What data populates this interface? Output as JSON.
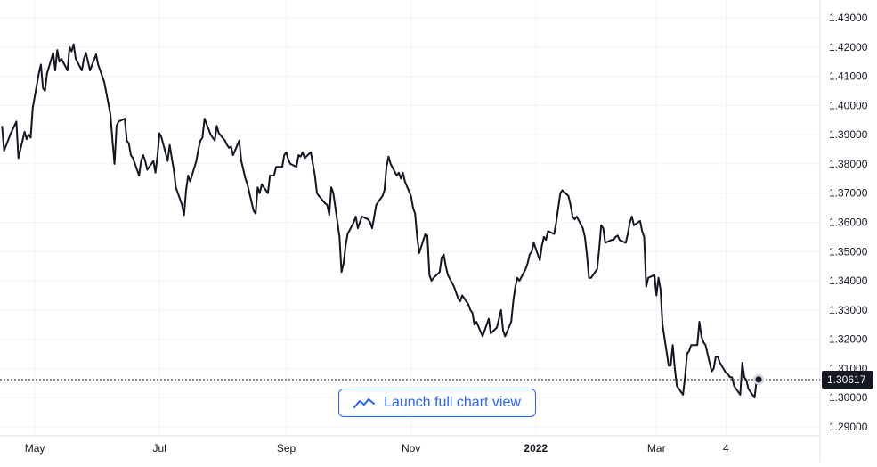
{
  "colors": {
    "line": "#131722",
    "grid": "#e6e6e6",
    "text": "#131722",
    "accent": "#2962ff",
    "last_label_bg": "#131722"
  },
  "launch_button": {
    "label": "Launch full chart view",
    "icon": "chart-line-icon"
  },
  "chart_data": {
    "type": "line",
    "title": "",
    "xlabel": "",
    "ylabel": "",
    "ylim": [
      1.29,
      1.43
    ],
    "y_ticks": [
      "1.43000",
      "1.42000",
      "1.41000",
      "1.40000",
      "1.39000",
      "1.38000",
      "1.37000",
      "1.36000",
      "1.35000",
      "1.34000",
      "1.33000",
      "1.32000",
      "1.31000",
      "1.30000",
      "1.29000"
    ],
    "x_ticks": [
      {
        "label": "May",
        "date": "2021-05-01",
        "bold": false
      },
      {
        "label": "Jul",
        "date": "2021-07-01",
        "bold": false
      },
      {
        "label": "Sep",
        "date": "2021-09-01",
        "bold": false
      },
      {
        "label": "Nov",
        "date": "2021-11-01",
        "bold": false
      },
      {
        "label": "2022",
        "date": "2022-01-01",
        "bold": true
      },
      {
        "label": "Mar",
        "date": "2022-03-01",
        "bold": false
      },
      {
        "label": "4",
        "date": "2022-04-04",
        "bold": false
      }
    ],
    "xlim": [
      "2021-04-14",
      "2022-05-20"
    ],
    "last_value": 1.30617,
    "last_value_label": "1.30617",
    "series": [
      {
        "values": [
          [
            "2021-04-15",
            1.393
          ],
          [
            "2021-04-16",
            1.3845
          ],
          [
            "2021-04-19",
            1.39
          ],
          [
            "2021-04-20",
            1.3915
          ],
          [
            "2021-04-21",
            1.393
          ],
          [
            "2021-04-22",
            1.3945
          ],
          [
            "2021-04-23",
            1.382
          ],
          [
            "2021-04-26",
            1.391
          ],
          [
            "2021-04-27",
            1.3885
          ],
          [
            "2021-04-28",
            1.39
          ],
          [
            "2021-04-29",
            1.389
          ],
          [
            "2021-04-30",
            1.399
          ],
          [
            "2021-05-03",
            1.411
          ],
          [
            "2021-05-04",
            1.414
          ],
          [
            "2021-05-05",
            1.406
          ],
          [
            "2021-05-06",
            1.405
          ],
          [
            "2021-05-07",
            1.411
          ],
          [
            "2021-05-10",
            1.418
          ],
          [
            "2021-05-11",
            1.412
          ],
          [
            "2021-05-12",
            1.419
          ],
          [
            "2021-05-13",
            1.415
          ],
          [
            "2021-05-14",
            1.416
          ],
          [
            "2021-05-17",
            1.412
          ],
          [
            "2021-05-18",
            1.42
          ],
          [
            "2021-05-19",
            1.4185
          ],
          [
            "2021-05-20",
            1.421
          ],
          [
            "2021-05-21",
            1.416
          ],
          [
            "2021-05-24",
            1.412
          ],
          [
            "2021-05-25",
            1.416
          ],
          [
            "2021-05-26",
            1.418
          ],
          [
            "2021-05-27",
            1.415
          ],
          [
            "2021-05-28",
            1.412
          ],
          [
            "2021-05-31",
            1.4175
          ],
          [
            "2021-06-01",
            1.414
          ],
          [
            "2021-06-02",
            1.412
          ],
          [
            "2021-06-03",
            1.41
          ],
          [
            "2021-06-04",
            1.408
          ],
          [
            "2021-06-07",
            1.397
          ],
          [
            "2021-06-08",
            1.388
          ],
          [
            "2021-06-09",
            1.38
          ],
          [
            "2021-06-10",
            1.393
          ],
          [
            "2021-06-11",
            1.3945
          ],
          [
            "2021-06-14",
            1.3955
          ],
          [
            "2021-06-15",
            1.388
          ],
          [
            "2021-06-16",
            1.387
          ],
          [
            "2021-06-17",
            1.383
          ],
          [
            "2021-06-18",
            1.382
          ],
          [
            "2021-06-21",
            1.376
          ],
          [
            "2021-06-22",
            1.381
          ],
          [
            "2021-06-23",
            1.383
          ],
          [
            "2021-06-24",
            1.381
          ],
          [
            "2021-06-25",
            1.378
          ],
          [
            "2021-06-28",
            1.381
          ],
          [
            "2021-06-29",
            1.377
          ],
          [
            "2021-06-30",
            1.383
          ],
          [
            "2021-07-01",
            1.3905
          ],
          [
            "2021-07-02",
            1.389
          ],
          [
            "2021-07-05",
            1.381
          ],
          [
            "2021-07-06",
            1.3865
          ],
          [
            "2021-07-07",
            1.382
          ],
          [
            "2021-07-08",
            1.378
          ],
          [
            "2021-07-09",
            1.372
          ],
          [
            "2021-07-12",
            1.366
          ],
          [
            "2021-07-13",
            1.3625
          ],
          [
            "2021-07-14",
            1.371
          ],
          [
            "2021-07-15",
            1.376
          ],
          [
            "2021-07-16",
            1.374
          ],
          [
            "2021-07-19",
            1.381
          ],
          [
            "2021-07-20",
            1.385
          ],
          [
            "2021-07-21",
            1.388
          ],
          [
            "2021-07-22",
            1.389
          ],
          [
            "2021-07-23",
            1.3955
          ],
          [
            "2021-07-26",
            1.39
          ],
          [
            "2021-07-27",
            1.389
          ],
          [
            "2021-07-28",
            1.388
          ],
          [
            "2021-07-29",
            1.393
          ],
          [
            "2021-07-30",
            1.3905
          ],
          [
            "2021-08-02",
            1.388
          ],
          [
            "2021-08-03",
            1.3865
          ],
          [
            "2021-08-04",
            1.3855
          ],
          [
            "2021-08-05",
            1.386
          ],
          [
            "2021-08-06",
            1.383
          ],
          [
            "2021-08-09",
            1.388
          ],
          [
            "2021-08-10",
            1.381
          ],
          [
            "2021-08-11",
            1.378
          ],
          [
            "2021-08-12",
            1.375
          ],
          [
            "2021-08-13",
            1.373
          ],
          [
            "2021-08-16",
            1.364
          ],
          [
            "2021-08-17",
            1.363
          ],
          [
            "2021-08-18",
            1.372
          ],
          [
            "2021-08-19",
            1.37
          ],
          [
            "2021-08-20",
            1.373
          ],
          [
            "2021-08-23",
            1.37
          ],
          [
            "2021-08-24",
            1.376
          ],
          [
            "2021-08-25",
            1.376
          ],
          [
            "2021-08-26",
            1.376
          ],
          [
            "2021-08-27",
            1.379
          ],
          [
            "2021-08-30",
            1.379
          ],
          [
            "2021-08-31",
            1.383
          ],
          [
            "2021-09-01",
            1.384
          ],
          [
            "2021-09-02",
            1.3815
          ],
          [
            "2021-09-03",
            1.38
          ],
          [
            "2021-09-06",
            1.379
          ],
          [
            "2021-09-07",
            1.383
          ],
          [
            "2021-09-08",
            1.3825
          ],
          [
            "2021-09-09",
            1.384
          ],
          [
            "2021-09-10",
            1.382
          ],
          [
            "2021-09-13",
            1.384
          ],
          [
            "2021-09-14",
            1.38
          ],
          [
            "2021-09-15",
            1.376
          ],
          [
            "2021-09-16",
            1.37
          ],
          [
            "2021-09-17",
            1.369
          ],
          [
            "2021-09-20",
            1.3665
          ],
          [
            "2021-09-21",
            1.366
          ],
          [
            "2021-09-22",
            1.3625
          ],
          [
            "2021-09-23",
            1.372
          ],
          [
            "2021-09-24",
            1.37
          ],
          [
            "2021-09-27",
            1.355
          ],
          [
            "2021-09-28",
            1.343
          ],
          [
            "2021-09-29",
            1.346
          ],
          [
            "2021-09-30",
            1.352
          ],
          [
            "2021-10-01",
            1.356
          ],
          [
            "2021-10-04",
            1.36
          ],
          [
            "2021-10-05",
            1.362
          ],
          [
            "2021-10-06",
            1.358
          ],
          [
            "2021-10-07",
            1.36
          ],
          [
            "2021-10-08",
            1.362
          ],
          [
            "2021-10-11",
            1.361
          ],
          [
            "2021-10-12",
            1.36
          ],
          [
            "2021-10-13",
            1.358
          ],
          [
            "2021-10-14",
            1.362
          ],
          [
            "2021-10-15",
            1.366
          ],
          [
            "2021-10-18",
            1.369
          ],
          [
            "2021-10-19",
            1.371
          ],
          [
            "2021-10-20",
            1.379
          ],
          [
            "2021-10-21",
            1.3825
          ],
          [
            "2021-10-22",
            1.38
          ],
          [
            "2021-10-25",
            1.376
          ],
          [
            "2021-10-26",
            1.377
          ],
          [
            "2021-10-27",
            1.375
          ],
          [
            "2021-10-28",
            1.377
          ],
          [
            "2021-10-29",
            1.374
          ],
          [
            "2021-11-01",
            1.369
          ],
          [
            "2021-11-02",
            1.365
          ],
          [
            "2021-11-03",
            1.363
          ],
          [
            "2021-11-04",
            1.355
          ],
          [
            "2021-11-05",
            1.3495
          ],
          [
            "2021-11-08",
            1.356
          ],
          [
            "2021-11-09",
            1.3555
          ],
          [
            "2021-11-10",
            1.342
          ],
          [
            "2021-11-11",
            1.34
          ],
          [
            "2021-11-12",
            1.341
          ],
          [
            "2021-11-15",
            1.343
          ],
          [
            "2021-11-16",
            1.348
          ],
          [
            "2021-11-17",
            1.349
          ],
          [
            "2021-11-18",
            1.345
          ],
          [
            "2021-11-19",
            1.342
          ],
          [
            "2021-11-22",
            1.338
          ],
          [
            "2021-11-23",
            1.336
          ],
          [
            "2021-11-24",
            1.334
          ],
          [
            "2021-11-25",
            1.333
          ],
          [
            "2021-11-26",
            1.335
          ],
          [
            "2021-11-29",
            1.332
          ],
          [
            "2021-11-30",
            1.33
          ],
          [
            "2021-12-01",
            1.329
          ],
          [
            "2021-12-02",
            1.325
          ],
          [
            "2021-12-03",
            1.326
          ],
          [
            "2021-12-06",
            1.321
          ],
          [
            "2021-12-07",
            1.323
          ],
          [
            "2021-12-08",
            1.325
          ],
          [
            "2021-12-09",
            1.327
          ],
          [
            "2021-12-10",
            1.322
          ],
          [
            "2021-12-13",
            1.324
          ],
          [
            "2021-12-14",
            1.327
          ],
          [
            "2021-12-15",
            1.33
          ],
          [
            "2021-12-16",
            1.323
          ],
          [
            "2021-12-17",
            1.321
          ],
          [
            "2021-12-20",
            1.326
          ],
          [
            "2021-12-21",
            1.333
          ],
          [
            "2021-12-22",
            1.338
          ],
          [
            "2021-12-23",
            1.341
          ],
          [
            "2021-12-24",
            1.34
          ],
          [
            "2021-12-27",
            1.344
          ],
          [
            "2021-12-28",
            1.346
          ],
          [
            "2021-12-29",
            1.349
          ],
          [
            "2021-12-30",
            1.35
          ],
          [
            "2021-12-31",
            1.353
          ],
          [
            "2022-01-03",
            1.347
          ],
          [
            "2022-01-04",
            1.352
          ],
          [
            "2022-01-05",
            1.355
          ],
          [
            "2022-01-06",
            1.354
          ],
          [
            "2022-01-07",
            1.357
          ],
          [
            "2022-01-10",
            1.356
          ],
          [
            "2022-01-11",
            1.36
          ],
          [
            "2022-01-12",
            1.365
          ],
          [
            "2022-01-13",
            1.37
          ],
          [
            "2022-01-14",
            1.371
          ],
          [
            "2022-01-17",
            1.369
          ],
          [
            "2022-01-18",
            1.366
          ],
          [
            "2022-01-19",
            1.362
          ],
          [
            "2022-01-20",
            1.361
          ],
          [
            "2022-01-21",
            1.362
          ],
          [
            "2022-01-24",
            1.358
          ],
          [
            "2022-01-25",
            1.355
          ],
          [
            "2022-01-26",
            1.349
          ],
          [
            "2022-01-27",
            1.341
          ],
          [
            "2022-01-28",
            1.341
          ],
          [
            "2022-01-31",
            1.344
          ],
          [
            "2022-02-01",
            1.351
          ],
          [
            "2022-02-02",
            1.359
          ],
          [
            "2022-02-03",
            1.358
          ],
          [
            "2022-02-04",
            1.353
          ],
          [
            "2022-02-07",
            1.354
          ],
          [
            "2022-02-08",
            1.354
          ],
          [
            "2022-02-09",
            1.355
          ],
          [
            "2022-02-10",
            1.3555
          ],
          [
            "2022-02-11",
            1.354
          ],
          [
            "2022-02-14",
            1.353
          ],
          [
            "2022-02-15",
            1.356
          ],
          [
            "2022-02-16",
            1.36
          ],
          [
            "2022-02-17",
            1.362
          ],
          [
            "2022-02-18",
            1.359
          ],
          [
            "2022-02-21",
            1.3605
          ],
          [
            "2022-02-22",
            1.357
          ],
          [
            "2022-02-23",
            1.355
          ],
          [
            "2022-02-24",
            1.338
          ],
          [
            "2022-02-25",
            1.341
          ],
          [
            "2022-02-28",
            1.342
          ],
          [
            "2022-03-01",
            1.335
          ],
          [
            "2022-03-02",
            1.341
          ],
          [
            "2022-03-03",
            1.337
          ],
          [
            "2022-03-04",
            1.325
          ],
          [
            "2022-03-07",
            1.311
          ],
          [
            "2022-03-08",
            1.311
          ],
          [
            "2022-03-09",
            1.318
          ],
          [
            "2022-03-10",
            1.31
          ],
          [
            "2022-03-11",
            1.304
          ],
          [
            "2022-03-14",
            1.301
          ],
          [
            "2022-03-15",
            1.307
          ],
          [
            "2022-03-16",
            1.315
          ],
          [
            "2022-03-17",
            1.316
          ],
          [
            "2022-03-18",
            1.318
          ],
          [
            "2022-03-21",
            1.318
          ],
          [
            "2022-03-22",
            1.326
          ],
          [
            "2022-03-23",
            1.321
          ],
          [
            "2022-03-24",
            1.319
          ],
          [
            "2022-03-25",
            1.318
          ],
          [
            "2022-03-28",
            1.309
          ],
          [
            "2022-03-29",
            1.31
          ],
          [
            "2022-03-30",
            1.314
          ],
          [
            "2022-03-31",
            1.314
          ],
          [
            "2022-04-01",
            1.312
          ],
          [
            "2022-04-04",
            1.3085
          ],
          [
            "2022-04-05",
            1.308
          ],
          [
            "2022-04-06",
            1.307
          ],
          [
            "2022-04-07",
            1.307
          ],
          [
            "2022-04-08",
            1.304
          ],
          [
            "2022-04-11",
            1.301
          ],
          [
            "2022-04-12",
            1.312
          ],
          [
            "2022-04-13",
            1.307
          ],
          [
            "2022-04-14",
            1.306
          ],
          [
            "2022-04-15",
            1.303
          ],
          [
            "2022-04-18",
            1.3
          ],
          [
            "2022-04-19",
            1.306
          ],
          [
            "2022-04-20",
            1.3062
          ]
        ]
      }
    ]
  }
}
